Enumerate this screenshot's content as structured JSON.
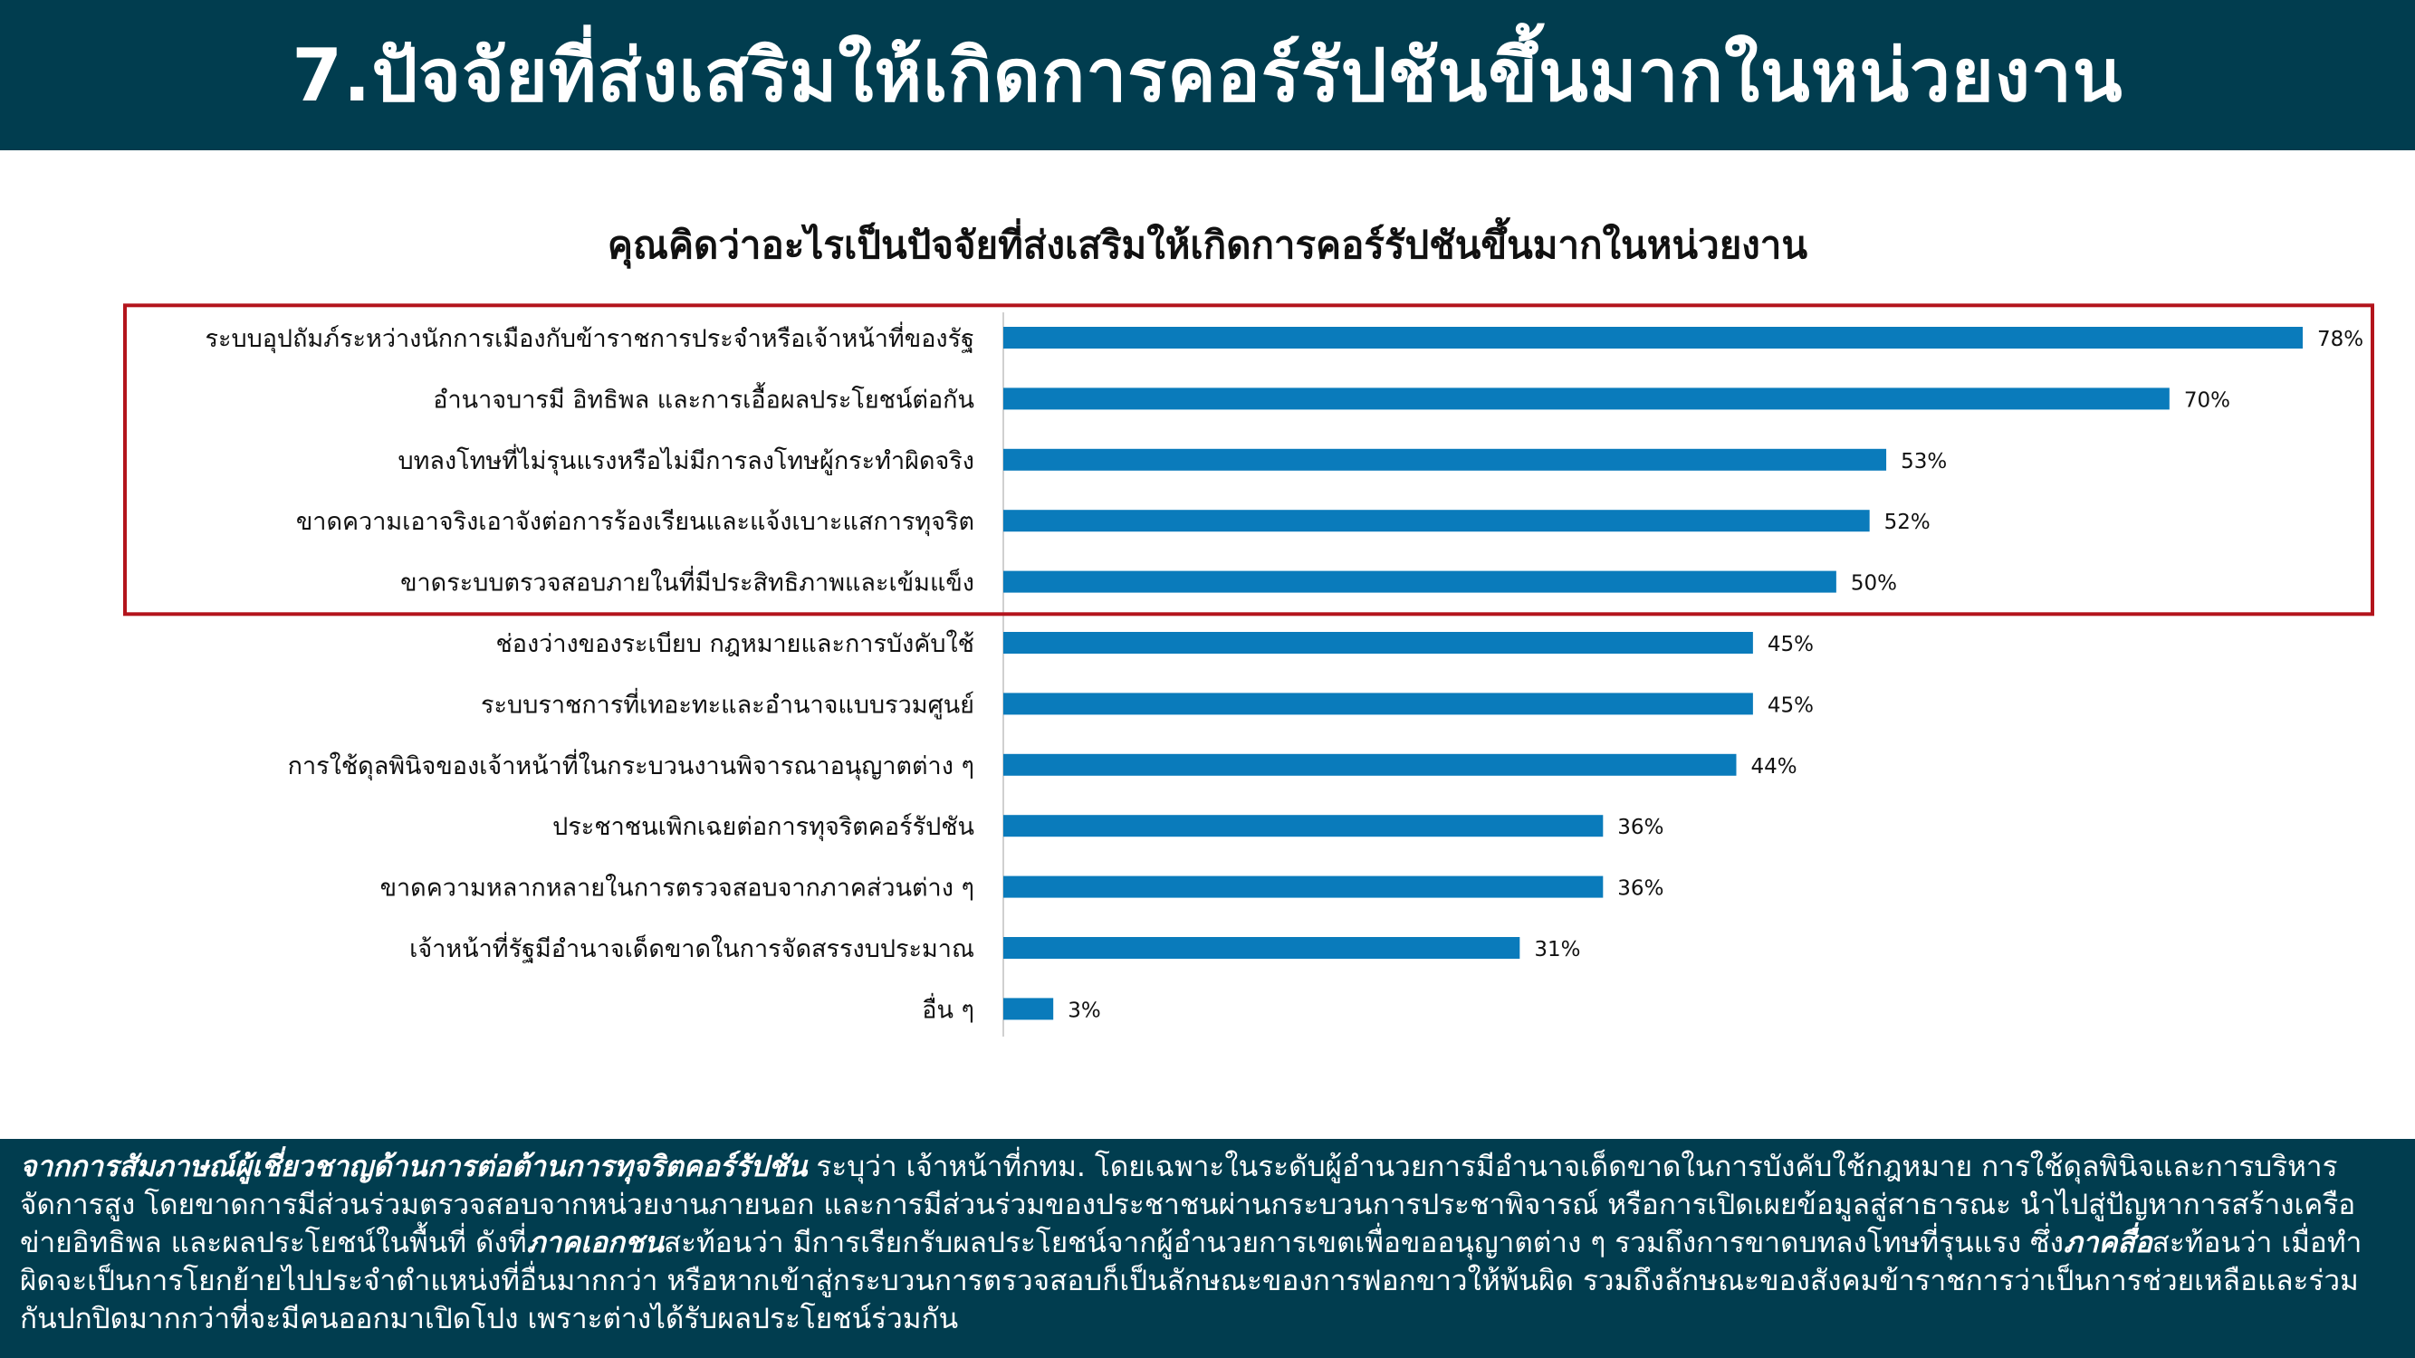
{
  "header": {
    "title": "7.ปัจจัยที่ส่งเสริมให้เกิดการคอร์รัปชันขึ้นมากในหน่วยงาน"
  },
  "chart_data": {
    "type": "bar",
    "orientation": "horizontal",
    "title": "คุณคิดว่าอะไรเป็นปัจจัยที่ส่งเสริมให้เกิดการคอร์รัปชันขึ้นมากในหน่วยงาน",
    "categories": [
      "ระบบอุปถัมภ์ระหว่างนักการเมืองกับข้าราชการประจำหรือเจ้าหน้าที่ของรัฐ",
      "อำนาจบารมี อิทธิพล และการเอื้อผลประโยชน์ต่อกัน",
      "บทลงโทษที่ไม่รุนแรงหรือไม่มีการลงโทษผู้กระทำผิดจริง",
      "ขาดความเอาจริงเอาจังต่อการร้องเรียนและแจ้งเบาะแสการทุจริต",
      "ขาดระบบตรวจสอบภายในที่มีประสิทธิภาพและเข้มแข็ง",
      "ช่องว่างของระเบียบ กฎหมายและการบังคับใช้",
      "ระบบราชการที่เทอะทะและอำนาจแบบรวมศูนย์",
      "การใช้ดุลพินิจของเจ้าหน้าที่ในกระบวนงานพิจารณาอนุญาตต่าง ๆ",
      "ประชาชนเพิกเฉยต่อการทุจริตคอร์รัปชัน",
      "ขาดความหลากหลายในการตรวจสอบจากภาคส่วนต่าง ๆ",
      "เจ้าหน้าที่รัฐมีอำนาจเด็ดขาดในการจัดสรรงบประมาณ",
      "อื่น ๆ"
    ],
    "values": [
      78,
      70,
      53,
      52,
      50,
      45,
      45,
      44,
      36,
      36,
      31,
      3
    ],
    "value_labels": [
      "78%",
      "70%",
      "53%",
      "52%",
      "50%",
      "45%",
      "45%",
      "44%",
      "36%",
      "36%",
      "31%",
      "3%"
    ],
    "unit": "%",
    "xlim": [
      0,
      80
    ],
    "bar_color": "#0a7bbb",
    "grid": false,
    "highlight": {
      "first_n": 5,
      "color": "#b3141c"
    }
  },
  "footer": {
    "em1": "จากการสัมภาษณ์ผู้เชี่ยวชาญด้านการต่อต้านการทุจริตคอร์รัปชัน",
    "t1": " ระบุว่า เจ้าหน้าที่กทม. โดยเฉพาะในระดับผู้อำนวยการมีอำนาจเด็ดขาดในการบังคับใช้กฎหมาย การใช้ดุลพินิจและการบริหารจัดการสูง โดยขาดการมีส่วนร่วมตรวจสอบจากหน่วยงานภายนอก และการมีส่วนร่วมของประชาชนผ่านกระบวนการประชาพิจารณ์ หรือการเปิดเผยข้อมูลสู่สาธารณะ นำไปสู่ปัญหาการสร้างเครือข่ายอิทธิพล และผลประโยชน์ในพื้นที่ ดังที่",
    "em2": "ภาคเอกชน",
    "t2": "สะท้อนว่า มีการเรียกรับผลประโยชน์จากผู้อำนวยการเขตเพื่อขออนุญาตต่าง ๆ รวมถึงการขาดบทลงโทษที่รุนแรง ซึ่ง",
    "em3": "ภาคสื่อ",
    "t3": "สะท้อนว่า เมื่อทำผิดจะเป็นการโยกย้ายไปประจำตำแหน่งที่อื่นมากกว่า หรือหากเข้าสู่กระบวนการตรวจสอบก็เป็นลักษณะของการฟอกขาวให้พ้นผิด รวมถึงลักษณะของสังคมข้าราชการว่าเป็นการช่วยเหลือและร่วมกันปกปิดมากกว่าที่จะมีคนออกมาเปิดโปง เพราะต่างได้รับผลประโยชน์ร่วมกัน"
  }
}
